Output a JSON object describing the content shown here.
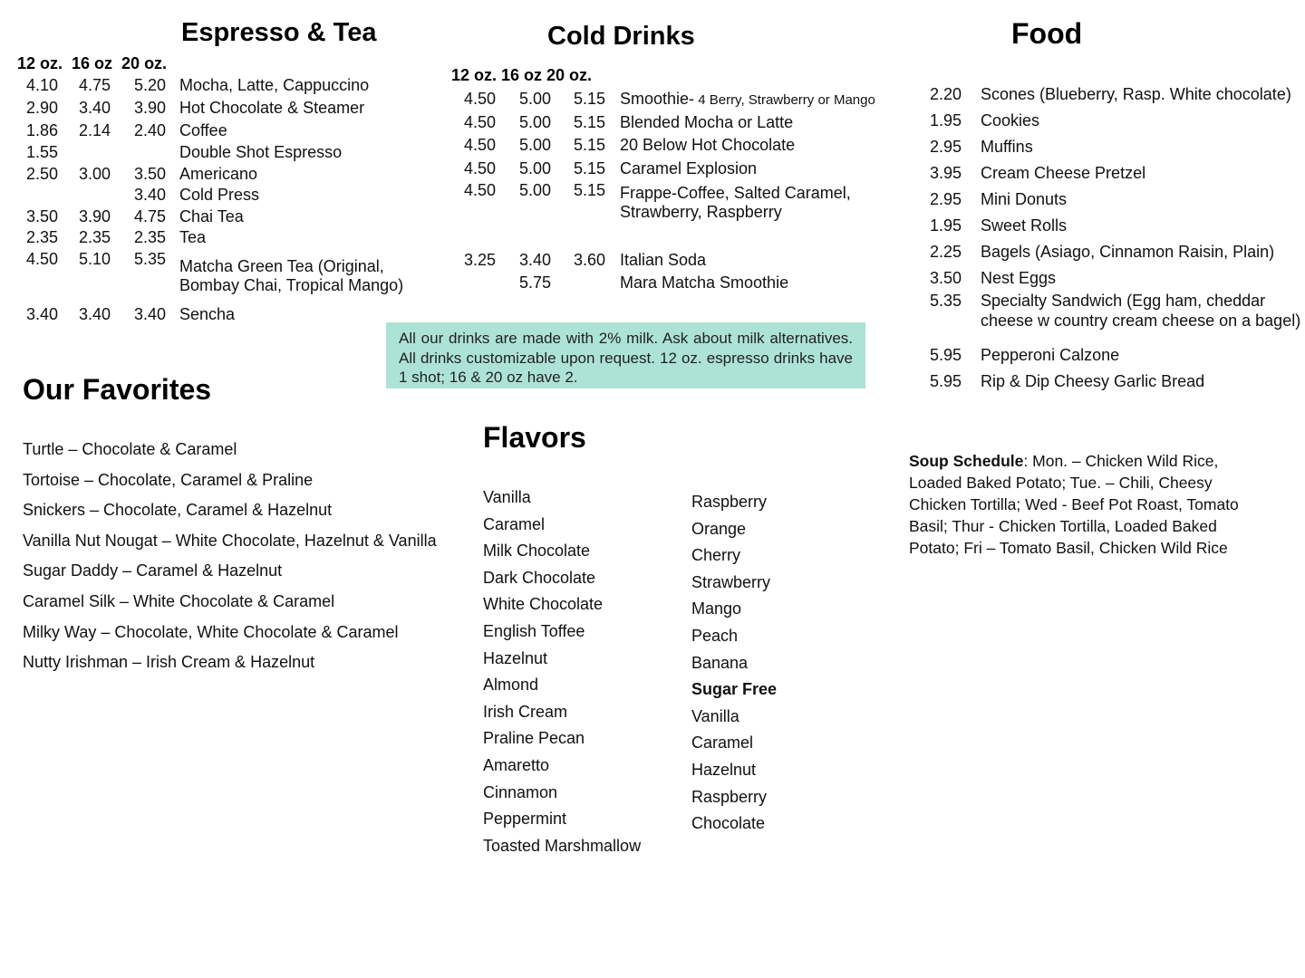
{
  "espresso": {
    "title": "Espresso & Tea",
    "sizes": "12 oz.  16 oz  20 oz.",
    "rows": [
      {
        "p": [
          "4.10",
          "4.75",
          "5.20"
        ],
        "name": [
          "Mocha, Latte, Cappuccino"
        ]
      },
      {
        "p": [
          "2.90",
          "3.40",
          "3.90"
        ],
        "name": [
          "Hot Chocolate & Steamer"
        ]
      },
      {
        "p": [
          "1.86",
          "2.14",
          "2.40"
        ],
        "name": [
          "Coffee"
        ]
      },
      {
        "p": [
          "1.55",
          "",
          ""
        ],
        "name": [
          "Double Shot Espresso"
        ]
      },
      {
        "p": [
          "2.50",
          "3.00",
          "3.50"
        ],
        "name": [
          "Americano"
        ]
      },
      {
        "p": [
          "",
          "",
          "3.40"
        ],
        "name": [
          "Cold Press"
        ]
      },
      {
        "p": [
          "3.50",
          "3.90",
          "4.75"
        ],
        "name": [
          "Chai Tea"
        ]
      },
      {
        "p": [
          "2.35",
          "2.35",
          "2.35"
        ],
        "name": [
          "Tea"
        ]
      },
      {
        "p": [
          "4.50",
          "5.10",
          "5.35"
        ],
        "name": [
          "Matcha Green Tea (Original,",
          "Bombay Chai,  Tropical Mango)"
        ]
      },
      {
        "p": [
          "3.40",
          "3.40",
          "3.40"
        ],
        "name": [
          "Sencha"
        ]
      }
    ]
  },
  "cold": {
    "title": "Cold Drinks",
    "sizes": "12 oz. 16 oz 20 oz.",
    "rows": [
      {
        "p": [
          "4.50",
          "5.00",
          "5.15"
        ],
        "name": [
          "Smoothie-"
        ],
        "detail": "4 Berry, Strawberry or Mango"
      },
      {
        "p": [
          "4.50",
          "5.00",
          "5.15"
        ],
        "name": [
          "Blended Mocha or Latte"
        ]
      },
      {
        "p": [
          "4.50",
          "5.00",
          "5.15"
        ],
        "name": [
          "20 Below Hot Chocolate"
        ]
      },
      {
        "p": [
          "4.50",
          "5.00",
          "5.15"
        ],
        "name": [
          "Caramel Explosion"
        ]
      },
      {
        "p": [
          "4.50",
          "5.00",
          "5.15"
        ],
        "name": [
          "Frappe-Coffee, Salted Caramel,",
          "Strawberry, Raspberry"
        ]
      },
      {
        "p": [
          "3.25",
          "3.40",
          "3.60"
        ],
        "name": [
          "Italian Soda"
        ]
      },
      {
        "p": [
          "",
          "5.75",
          ""
        ],
        "name": [
          "Mara Matcha Smoothie"
        ]
      }
    ]
  },
  "food": {
    "title": "Food",
    "rows": [
      {
        "p": "2.20",
        "name": [
          "Scones (Blueberry, Rasp. White chocolate)"
        ]
      },
      {
        "p": "1.95",
        "name": [
          "Cookies"
        ]
      },
      {
        "p": "2.95",
        "name": [
          "Muffins"
        ]
      },
      {
        "p": "3.95",
        "name": [
          "Cream Cheese Pretzel"
        ]
      },
      {
        "p": "2.95",
        "name": [
          "Mini Donuts"
        ]
      },
      {
        "p": "1.95",
        "name": [
          "Sweet Rolls"
        ]
      },
      {
        "p": "2.25",
        "name": [
          "Bagels (Asiago, Cinnamon Raisin, Plain)"
        ]
      },
      {
        "p": "3.50",
        "name": [
          "Nest Eggs"
        ]
      },
      {
        "p": "5.35",
        "name": [
          "Specialty Sandwich (Egg ham, cheddar",
          "cheese w country cream cheese on a bagel)"
        ]
      },
      {
        "p": "5.95",
        "name": [
          "Pepperoni Calzone"
        ]
      },
      {
        "p": "5.95",
        "name": [
          "Rip & Dip Cheesy Garlic Bread"
        ]
      }
    ]
  },
  "note": "All our drinks are made with 2% milk. Ask about milk alternatives.  All drinks customizable upon request. 12 oz. espresso drinks have 1 shot; 16 & 20 oz have 2.",
  "favorites": {
    "title": "Our Favorites",
    "items": [
      "Turtle – Chocolate & Caramel",
      "Tortoise – Chocolate, Caramel & Praline",
      "Snickers – Chocolate, Caramel & Hazelnut",
      "Vanilla Nut Nougat – White Chocolate, Hazelnut & Vanilla",
      "Sugar Daddy – Caramel & Hazelnut",
      "Caramel Silk – White Chocolate & Caramel",
      "Milky Way – Chocolate, White Chocolate & Caramel",
      "Nutty Irishman – Irish Cream & Hazelnut"
    ]
  },
  "flavors": {
    "title": "Flavors",
    "left": [
      "Vanilla",
      "Caramel",
      "Milk Chocolate",
      "Dark Chocolate",
      "White Chocolate",
      "English Toffee",
      "Hazelnut",
      "Almond",
      "Irish Cream",
      "Praline Pecan",
      "Amaretto",
      "Cinnamon",
      "Peppermint",
      "Toasted Marshmallow"
    ],
    "right": [
      "Raspberry",
      "Orange",
      "Cherry",
      "Strawberry",
      "Mango",
      "Peach",
      "Banana"
    ],
    "sugar_free_label": "Sugar Free",
    "sugar_free": [
      "Vanilla",
      "Caramel",
      "Hazelnut",
      "Raspberry",
      "Chocolate"
    ]
  },
  "soup": {
    "label": "Soup Schedule",
    "lines": [
      ":  Mon. – Chicken Wild Rice,",
      "Loaded Baked Potato; Tue. – Chili, Cheesy",
      "Chicken Tortilla; Wed - Beef Pot Roast, Tomato",
      "Basil; Thur - Chicken Tortilla, Loaded Baked",
      "Potato; Fri – Tomato Basil, Chicken Wild Rice"
    ]
  },
  "colors": {
    "note_bg": "#ade3d6"
  }
}
